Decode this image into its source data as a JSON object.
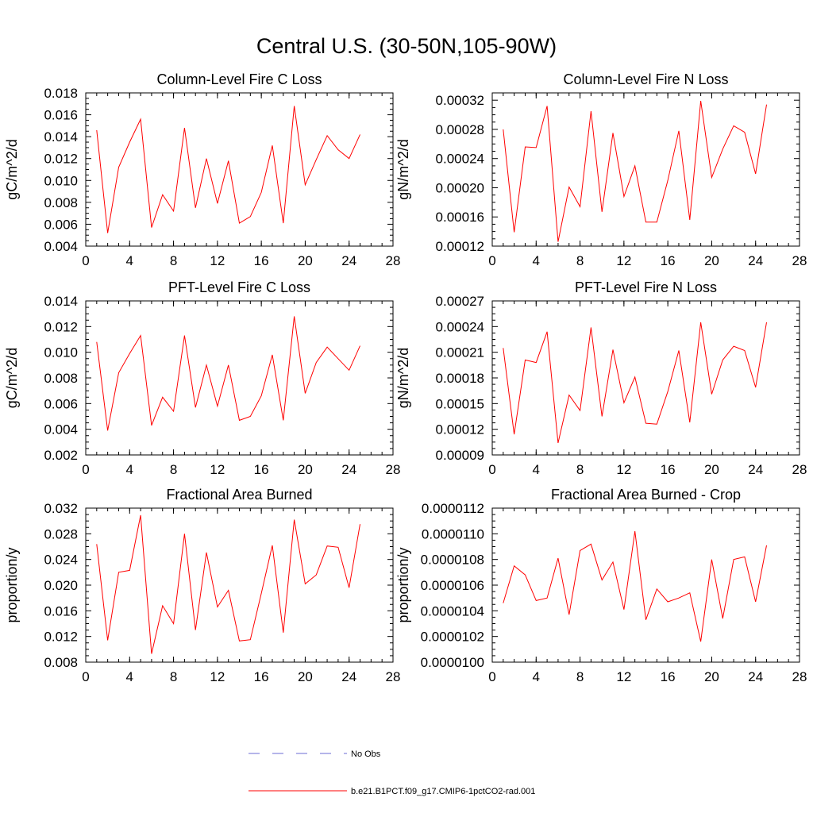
{
  "figure": {
    "title": "Central U.S. (30-50N,105-90W)"
  },
  "legend": {
    "entries": [
      {
        "label": "No Obs",
        "color": "#6b6bd6",
        "style": "dashed"
      },
      {
        "label": "b.e21.B1PCT.f09_g17.CMIP6-1pctCO2-rad.001",
        "color": "#ff0000",
        "style": "solid"
      }
    ]
  },
  "chart_data": [
    {
      "type": "line",
      "title": "Column-Level Fire C Loss",
      "ylabel": "gC/m^2/d",
      "xlim": [
        0,
        28
      ],
      "ylim": [
        0.004,
        0.018
      ],
      "xticks": [
        "0",
        "4",
        "8",
        "12",
        "16",
        "20",
        "24",
        "28"
      ],
      "yticks": [
        "0.004",
        "0.006",
        "0.008",
        "0.010",
        "0.012",
        "0.014",
        "0.016",
        "0.018"
      ],
      "x": [
        1,
        2,
        3,
        4,
        5,
        6,
        7,
        8,
        9,
        10,
        11,
        12,
        13,
        14,
        15,
        16,
        17,
        18,
        19,
        20,
        21,
        22,
        23,
        24,
        25
      ],
      "series": [
        {
          "name": "b.e21.B1PCT.f09_g17.CMIP6-1pctCO2-rad.001",
          "color": "#ff0000",
          "values": [
            0.0146,
            0.0052,
            0.0112,
            0.0135,
            0.0156,
            0.0057,
            0.0087,
            0.0072,
            0.0148,
            0.0075,
            0.012,
            0.0079,
            0.0118,
            0.0061,
            0.0067,
            0.0089,
            0.0132,
            0.0061,
            0.0168,
            0.0096,
            0.0119,
            0.0141,
            0.0128,
            0.012,
            0.0142
          ]
        }
      ]
    },
    {
      "type": "line",
      "title": "Column-Level Fire N Loss",
      "ylabel": "gN/m^2/d",
      "xlim": [
        0,
        28
      ],
      "ylim": [
        0.00012,
        0.00033
      ],
      "xticks": [
        "0",
        "4",
        "8",
        "12",
        "16",
        "20",
        "24",
        "28"
      ],
      "yticks": [
        "0.00012",
        "0.00016",
        "0.00020",
        "0.00024",
        "0.00028",
        "0.00032"
      ],
      "x": [
        1,
        2,
        3,
        4,
        5,
        6,
        7,
        8,
        9,
        10,
        11,
        12,
        13,
        14,
        15,
        16,
        17,
        18,
        19,
        20,
        21,
        22,
        23,
        24,
        25
      ],
      "series": [
        {
          "name": "b.e21.B1PCT.f09_g17.CMIP6-1pctCO2-rad.001",
          "color": "#ff0000",
          "values": [
            0.00028,
            0.000139,
            0.000256,
            0.000255,
            0.000312,
            0.000126,
            0.000201,
            0.000174,
            0.000305,
            0.000167,
            0.000275,
            0.000188,
            0.00023,
            0.000153,
            0.000153,
            0.00021,
            0.000278,
            0.000156,
            0.000319,
            0.000214,
            0.000253,
            0.000285,
            0.000276,
            0.000219,
            0.000314
          ]
        }
      ]
    },
    {
      "type": "line",
      "title": "PFT-Level Fire C Loss",
      "ylabel": "gC/m^2/d",
      "xlim": [
        0,
        28
      ],
      "ylim": [
        0.002,
        0.014
      ],
      "xticks": [
        "0",
        "4",
        "8",
        "12",
        "16",
        "20",
        "24",
        "28"
      ],
      "yticks": [
        "0.002",
        "0.004",
        "0.006",
        "0.008",
        "0.010",
        "0.012",
        "0.014"
      ],
      "x": [
        1,
        2,
        3,
        4,
        5,
        6,
        7,
        8,
        9,
        10,
        11,
        12,
        13,
        14,
        15,
        16,
        17,
        18,
        19,
        20,
        21,
        22,
        23,
        24,
        25
      ],
      "series": [
        {
          "name": "b.e21.B1PCT.f09_g17.CMIP6-1pctCO2-rad.001",
          "color": "#ff0000",
          "values": [
            0.0108,
            0.0039,
            0.0084,
            0.0099,
            0.0113,
            0.0043,
            0.0065,
            0.0054,
            0.0113,
            0.0057,
            0.009,
            0.0058,
            0.009,
            0.0047,
            0.005,
            0.0066,
            0.0098,
            0.0047,
            0.0128,
            0.0068,
            0.0092,
            0.0104,
            0.0095,
            0.0086,
            0.0105
          ]
        }
      ]
    },
    {
      "type": "line",
      "title": "PFT-Level Fire N Loss",
      "ylabel": "gN/m^2/d",
      "xlim": [
        0,
        28
      ],
      "ylim": [
        9e-05,
        0.00027
      ],
      "xticks": [
        "0",
        "4",
        "8",
        "12",
        "16",
        "20",
        "24",
        "28"
      ],
      "yticks": [
        "0.00009",
        "0.00012",
        "0.00015",
        "0.00018",
        "0.00021",
        "0.00024",
        "0.00027"
      ],
      "x": [
        1,
        2,
        3,
        4,
        5,
        6,
        7,
        8,
        9,
        10,
        11,
        12,
        13,
        14,
        15,
        16,
        17,
        18,
        19,
        20,
        21,
        22,
        23,
        24,
        25
      ],
      "series": [
        {
          "name": "b.e21.B1PCT.f09_g17.CMIP6-1pctCO2-rad.001",
          "color": "#ff0000",
          "values": [
            0.000215,
            0.000114,
            0.000201,
            0.000198,
            0.000234,
            0.000104,
            0.00016,
            0.000142,
            0.000239,
            0.000135,
            0.000213,
            0.000151,
            0.000181,
            0.000127,
            0.000126,
            0.000164,
            0.000212,
            0.000128,
            0.000245,
            0.000161,
            0.000201,
            0.000217,
            0.000212,
            0.000169,
            0.000245
          ]
        }
      ]
    },
    {
      "type": "line",
      "title": "Fractional Area Burned",
      "ylabel": "proportion/y",
      "xlim": [
        0,
        28
      ],
      "ylim": [
        0.008,
        0.032
      ],
      "xticks": [
        "0",
        "4",
        "8",
        "12",
        "16",
        "20",
        "24",
        "28"
      ],
      "yticks": [
        "0.008",
        "0.012",
        "0.016",
        "0.020",
        "0.024",
        "0.028",
        "0.032"
      ],
      "x": [
        1,
        2,
        3,
        4,
        5,
        6,
        7,
        8,
        9,
        10,
        11,
        12,
        13,
        14,
        15,
        16,
        17,
        18,
        19,
        20,
        21,
        22,
        23,
        24,
        25
      ],
      "series": [
        {
          "name": "b.e21.B1PCT.f09_g17.CMIP6-1pctCO2-rad.001",
          "color": "#ff0000",
          "values": [
            0.0264,
            0.0114,
            0.022,
            0.0223,
            0.0309,
            0.0093,
            0.0168,
            0.014,
            0.028,
            0.013,
            0.0251,
            0.0166,
            0.0192,
            0.0113,
            0.0115,
            0.0187,
            0.0262,
            0.0126,
            0.0302,
            0.0202,
            0.0216,
            0.0261,
            0.0259,
            0.0196,
            0.0295
          ]
        }
      ]
    },
    {
      "type": "line",
      "title": "Fractional Area Burned - Crop",
      "ylabel": "proportion/y",
      "xlim": [
        0,
        28
      ],
      "ylim": [
        1e-05,
        1.12e-05
      ],
      "xticks": [
        "0",
        "4",
        "8",
        "12",
        "16",
        "20",
        "24",
        "28"
      ],
      "yticks": [
        "0.0000100",
        "0.0000102",
        "0.0000104",
        "0.0000106",
        "0.0000108",
        "0.0000110",
        "0.0000112"
      ],
      "x": [
        1,
        2,
        3,
        4,
        5,
        6,
        7,
        8,
        9,
        10,
        11,
        12,
        13,
        14,
        15,
        16,
        17,
        18,
        19,
        20,
        21,
        22,
        23,
        24,
        25
      ],
      "series": [
        {
          "name": "b.e21.B1PCT.f09_g17.CMIP6-1pctCO2-rad.001",
          "color": "#ff0000",
          "values": [
            1.046e-05,
            1.075e-05,
            1.068e-05,
            1.048e-05,
            1.05e-05,
            1.081e-05,
            1.037e-05,
            1.087e-05,
            1.092e-05,
            1.064e-05,
            1.078e-05,
            1.041e-05,
            1.102e-05,
            1.033e-05,
            1.057e-05,
            1.047e-05,
            1.05e-05,
            1.054e-05,
            1.016e-05,
            1.08e-05,
            1.034e-05,
            1.08e-05,
            1.082e-05,
            1.047e-05,
            1.091e-05
          ]
        }
      ]
    }
  ]
}
